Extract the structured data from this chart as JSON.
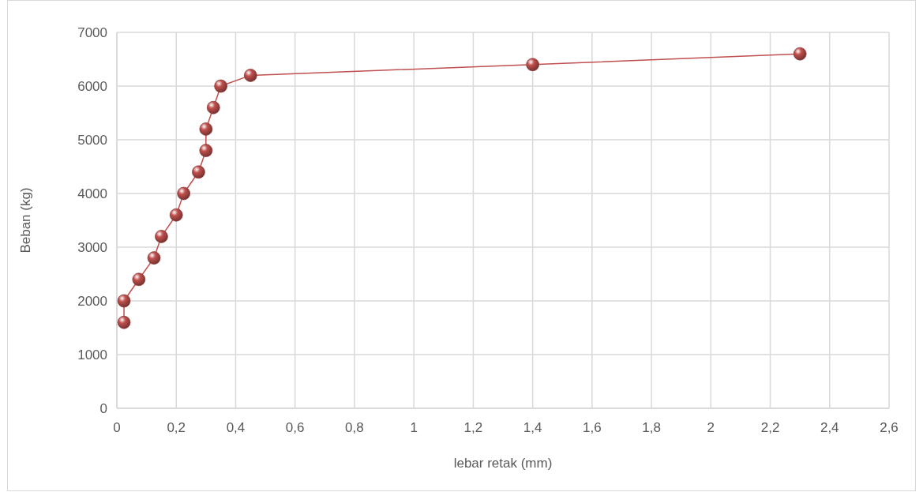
{
  "chart_data": {
    "type": "line",
    "xlabel": "lebar retak (mm)",
    "ylabel": "Beban (kg)",
    "x": [
      0.024,
      0.024,
      0.074,
      0.125,
      0.15,
      0.2,
      0.225,
      0.275,
      0.3,
      0.3,
      0.325,
      0.35,
      0.45,
      1.4,
      2.3
    ],
    "series": [
      {
        "color": "#c0504d",
        "values": [
          1600,
          2000,
          2400,
          2800,
          3200,
          3600,
          4000,
          4400,
          4800,
          5200,
          5600,
          6000,
          6200,
          6400,
          6600
        ]
      }
    ],
    "xlim": [
      0,
      2.6
    ],
    "xticks": [
      0,
      {
        "value": 0.2,
        "label": "0,2"
      },
      {
        "value": 0.4,
        "label": "0,4"
      },
      {
        "value": 0.6,
        "label": "0,6"
      },
      {
        "value": 0.8,
        "label": "0,8"
      },
      1,
      {
        "value": 1.2,
        "label": "1,2"
      },
      {
        "value": 1.4,
        "label": "1,4"
      },
      {
        "value": 1.6,
        "label": "1,6"
      },
      {
        "value": 1.8,
        "label": "1,8"
      },
      2,
      {
        "value": 2.2,
        "label": "2,2"
      },
      {
        "value": 2.4,
        "label": "2,4"
      },
      {
        "value": 2.6,
        "label": "2,6"
      }
    ],
    "ylim": [
      0,
      7000
    ],
    "yticks": [
      0,
      1000,
      2000,
      3000,
      4000,
      5000,
      6000,
      7000
    ],
    "grid": true,
    "marker": "circle",
    "line_style": "solid"
  }
}
